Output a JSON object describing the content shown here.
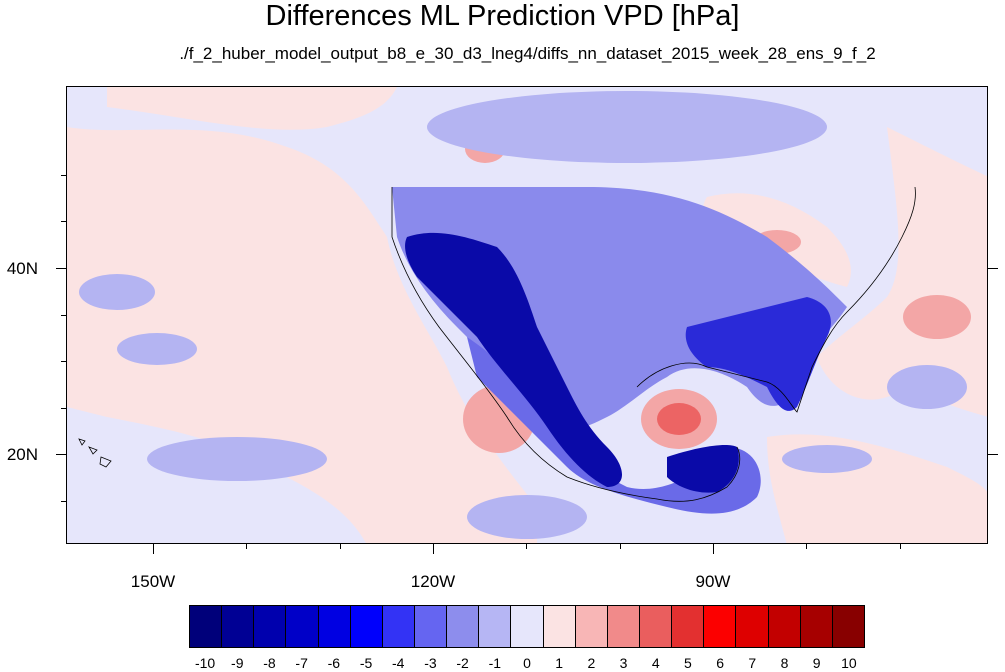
{
  "title": "Differences ML Prediction VPD [hPa]",
  "subtitle": "./f_2_huber_model_output_b8_e_30_d3_lneg4/diffs_nn_dataset_2015_week_28_ens_9_f_2",
  "map": {
    "lat_labels": [
      "40N",
      "20N"
    ],
    "lon_labels": [
      "150W",
      "120W",
      "90W"
    ],
    "lat_range": [
      11,
      60
    ],
    "lon_range": [
      -159,
      -60
    ],
    "colors": {
      "background": "#e6e6fb",
      "neg_light": "#b4b4f2",
      "neg_mid": "#6a6ae8",
      "neg_strong": "#2020d8",
      "neg_dark": "#00008c",
      "pos_light": "#fbe3e3",
      "pos_mid": "#f3a6a6",
      "pos_strong": "#ec6464"
    }
  },
  "colorbar": {
    "labels": [
      "-10",
      "-9",
      "-8",
      "-7",
      "-6",
      "-5",
      "-4",
      "-3",
      "-2",
      "-1",
      "0",
      "1",
      "2",
      "3",
      "4",
      "5",
      "6",
      "7",
      "8",
      "9",
      "10"
    ],
    "colors": [
      "#00007a",
      "#000094",
      "#0000ae",
      "#0000c8",
      "#0000e2",
      "#0000fc",
      "#3333f5",
      "#6565f1",
      "#8d8ded",
      "#b6b6f4",
      "#e6e6fb",
      "#fbe3e3",
      "#f8b6b6",
      "#f18a8a",
      "#ea5e5e",
      "#e33030",
      "#fc0000",
      "#de0000",
      "#c20000",
      "#a60000",
      "#880000"
    ]
  }
}
